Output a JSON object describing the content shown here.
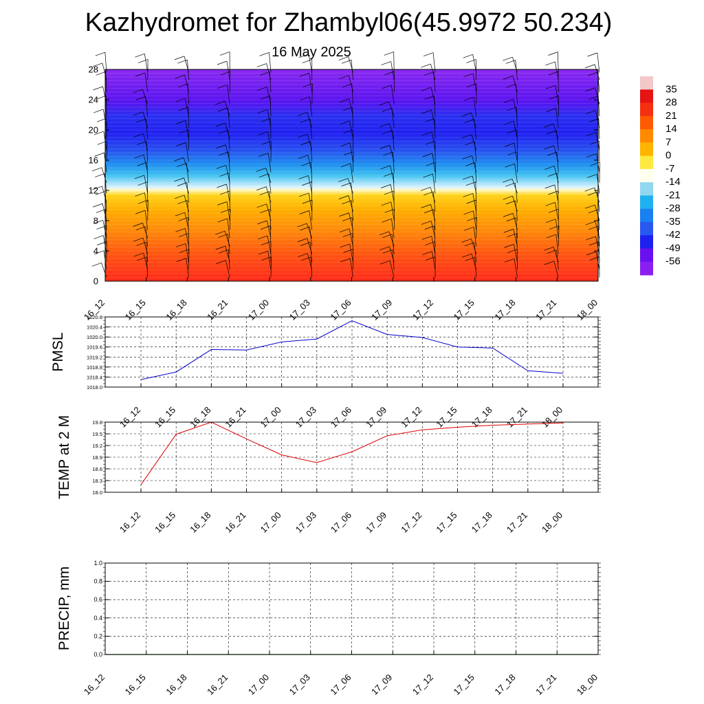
{
  "title": "Kazhydromet for Zhambyl06(45.9972 50.234)",
  "subtitle": "16 May 2025",
  "chart_data": [
    {
      "type": "heatmap",
      "name": "vertical-section",
      "x_categories": [
        "16_12",
        "16_15",
        "16_18",
        "16_21",
        "17_00",
        "17_03",
        "17_06",
        "17_09",
        "17_12",
        "17_15",
        "17_18",
        "17_21",
        "18_00"
      ],
      "y_ticks": [
        "0",
        "4",
        "8",
        "12",
        "16",
        "20",
        "24",
        "28"
      ],
      "ylim": [
        0,
        28
      ],
      "colorbar_labels": [
        "35",
        "28",
        "21",
        "14",
        "7",
        "0",
        "-7",
        "-14",
        "-21",
        "-28",
        "-35",
        "-42",
        "-49",
        "-56"
      ],
      "colorbar_colors": [
        "#f2c8c8",
        "#e61414",
        "#f53010",
        "#ff5a00",
        "#ff8a00",
        "#ffb400",
        "#ffe840",
        "#fffff0",
        "#90d8f0",
        "#20b0f0",
        "#1880f0",
        "#2858f0",
        "#1e20f0",
        "#6a10f0",
        "#8a20f0"
      ],
      "wind_barbs": true
    },
    {
      "type": "line",
      "name": "pmsl",
      "ylabel": "PMSL",
      "color": "#0000cc",
      "x": [
        "16_12",
        "16_15",
        "16_18",
        "16_21",
        "17_00",
        "17_03",
        "17_06",
        "17_09",
        "17_12",
        "17_15",
        "17_18",
        "17_21",
        "18_00"
      ],
      "values": [
        1018.3,
        1018.6,
        1019.5,
        1019.48,
        1019.8,
        1019.92,
        1020.65,
        1020.1,
        1019.98,
        1019.6,
        1019.56,
        1018.65,
        1018.55
      ],
      "y_ticks": [
        "1018.0",
        "1018.4",
        "1018.8",
        "1019.2",
        "1019.6",
        "1020.0",
        "1020.4",
        "1020.8"
      ],
      "ylim": [
        1018.0,
        1020.8
      ]
    },
    {
      "type": "line",
      "name": "temp2m",
      "ylabel": "TEMP at 2 M",
      "color": "#dd0000",
      "x": [
        "16_12",
        "16_15",
        "16_18",
        "16_21",
        "17_00",
        "17_03",
        "17_06",
        "17_09",
        "17_12",
        "17_15",
        "17_18",
        "17_21",
        "18_00"
      ],
      "values": [
        18.19,
        19.49,
        19.8,
        19.37,
        18.96,
        18.76,
        19.04,
        19.45,
        19.6,
        19.67,
        19.72,
        19.75,
        19.78
      ],
      "y_ticks": [
        "18.0",
        "18.3",
        "18.6",
        "18.9",
        "19.2",
        "19.5",
        "19.8"
      ],
      "ylim": [
        18.0,
        19.8
      ]
    },
    {
      "type": "line",
      "name": "precip",
      "ylabel": "PRECIP, mm",
      "color": "#006600",
      "x": [
        "16_12",
        "16_15",
        "16_18",
        "16_21",
        "17_00",
        "17_03",
        "17_06",
        "17_09",
        "17_12",
        "17_15",
        "17_18",
        "17_21",
        "18_00"
      ],
      "values": [
        0,
        0,
        0,
        0,
        0,
        0,
        0,
        0,
        0,
        0,
        0,
        0,
        0
      ],
      "y_ticks": [
        "0.0",
        "0.2",
        "0.4",
        "0.6",
        "0.8",
        "1.0"
      ],
      "ylim": [
        0,
        1.0
      ]
    }
  ]
}
